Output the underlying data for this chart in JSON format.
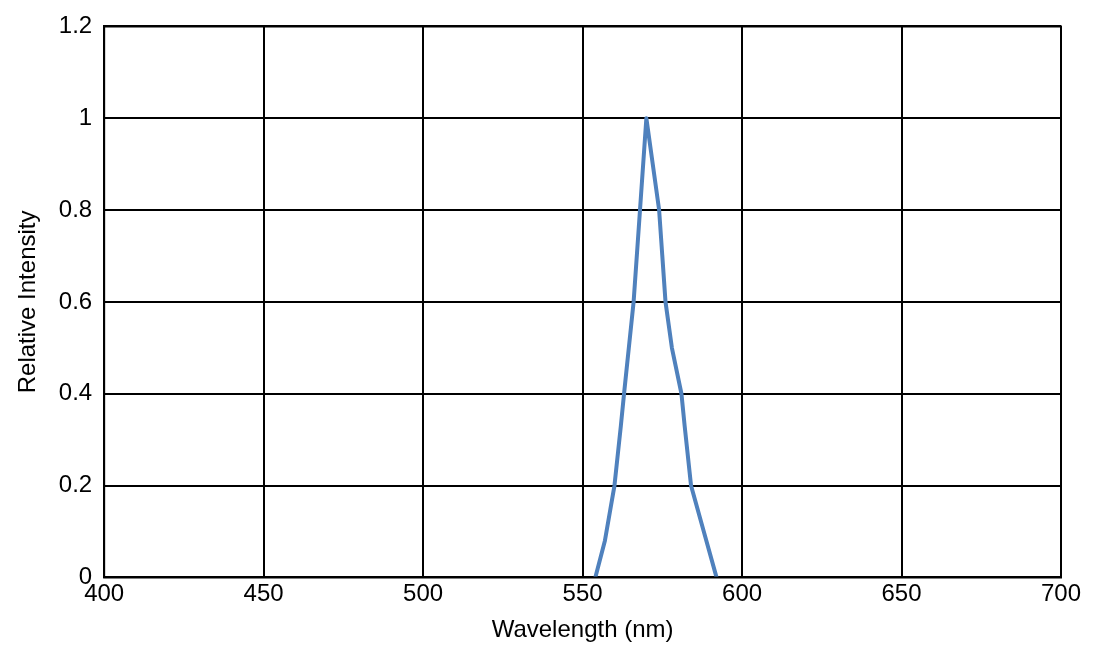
{
  "chart_data": {
    "type": "line",
    "xlabel": "Wavelength (nm)",
    "ylabel": "Relative Intensity",
    "series": [
      {
        "color": "#4f81bd",
        "x": [
          554,
          557,
          560,
          562,
          563,
          566,
          568,
          570,
          574,
          576,
          578,
          581,
          582,
          584,
          588,
          592
        ],
        "values": [
          0,
          0.08,
          0.2,
          0.33,
          0.4,
          0.6,
          0.8,
          1,
          0.8,
          0.6,
          0.5,
          0.4,
          0.33,
          0.2,
          0.1,
          0
        ]
      }
    ],
    "xlim": [
      400,
      700
    ],
    "xticks": [
      400,
      450,
      500,
      550,
      600,
      650,
      700
    ],
    "ylim": [
      0,
      1.2
    ],
    "yticks": [
      0,
      0.2,
      0.4,
      0.6,
      0.8,
      1,
      1.2
    ],
    "grid": true,
    "marker": "none",
    "line_style": "solid"
  }
}
